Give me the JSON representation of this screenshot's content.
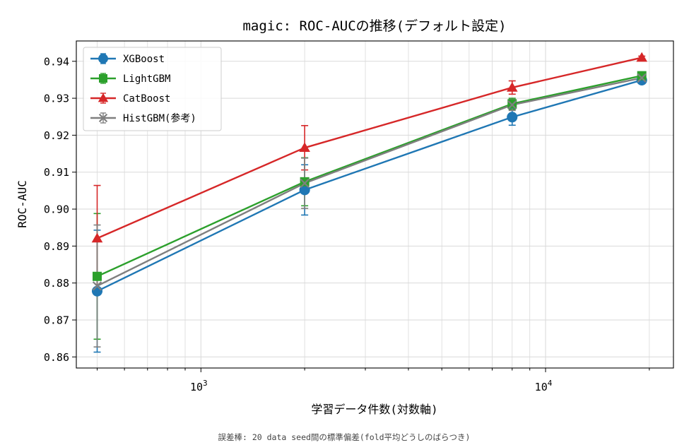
{
  "chart_data": {
    "type": "line",
    "title": "magic: ROC-AUCの推移(デフォルト設定)",
    "xlabel": "学習データ件数(対数軸)",
    "ylabel": "ROC-AUC",
    "footnote": "誤差棒: 20 data seed間の標準偏差(fold平均どうしのばらつき)",
    "x_scale": "log",
    "xlim": [
      435,
      23500
    ],
    "ylim": [
      0.857,
      0.9455
    ],
    "x": [
      500,
      2000,
      8000,
      19020
    ],
    "x_tick_labels": [
      {
        "value": 1000,
        "base": "10",
        "exp": "3"
      },
      {
        "value": 10000,
        "base": "10",
        "exp": "4"
      }
    ],
    "y_ticks": [
      0.86,
      0.87,
      0.88,
      0.89,
      0.9,
      0.91,
      0.92,
      0.93,
      0.94
    ],
    "y_tick_labels": [
      "0.86",
      "0.87",
      "0.88",
      "0.89",
      "0.90",
      "0.91",
      "0.92",
      "0.93",
      "0.94"
    ],
    "grid": true,
    "legend_position": "top-left",
    "series": [
      {
        "name": "XGBoost",
        "color": "#1f77b4",
        "marker": "circle",
        "values": [
          0.8778,
          0.9052,
          0.9249,
          0.9349
        ],
        "errors": [
          0.0165,
          0.0068,
          0.0022,
          0.0005
        ]
      },
      {
        "name": "LightGBM",
        "color": "#2ca02c",
        "marker": "square",
        "values": [
          0.8818,
          0.9074,
          0.9285,
          0.9361
        ],
        "errors": [
          0.017,
          0.0065,
          0.0015,
          0.0004
        ]
      },
      {
        "name": "CatBoost",
        "color": "#d62728",
        "marker": "triangle",
        "values": [
          0.8921,
          0.9166,
          0.9329,
          0.941
        ],
        "errors": [
          0.0143,
          0.006,
          0.0018,
          0.0004
        ]
      },
      {
        "name": "HistGBM(参考)",
        "color": "#7f7f7f",
        "marker": "x",
        "values": [
          0.8792,
          0.907,
          0.9282,
          0.9355
        ],
        "errors": [
          0.0165,
          0.0068,
          0.0015,
          0.0004
        ]
      }
    ]
  }
}
